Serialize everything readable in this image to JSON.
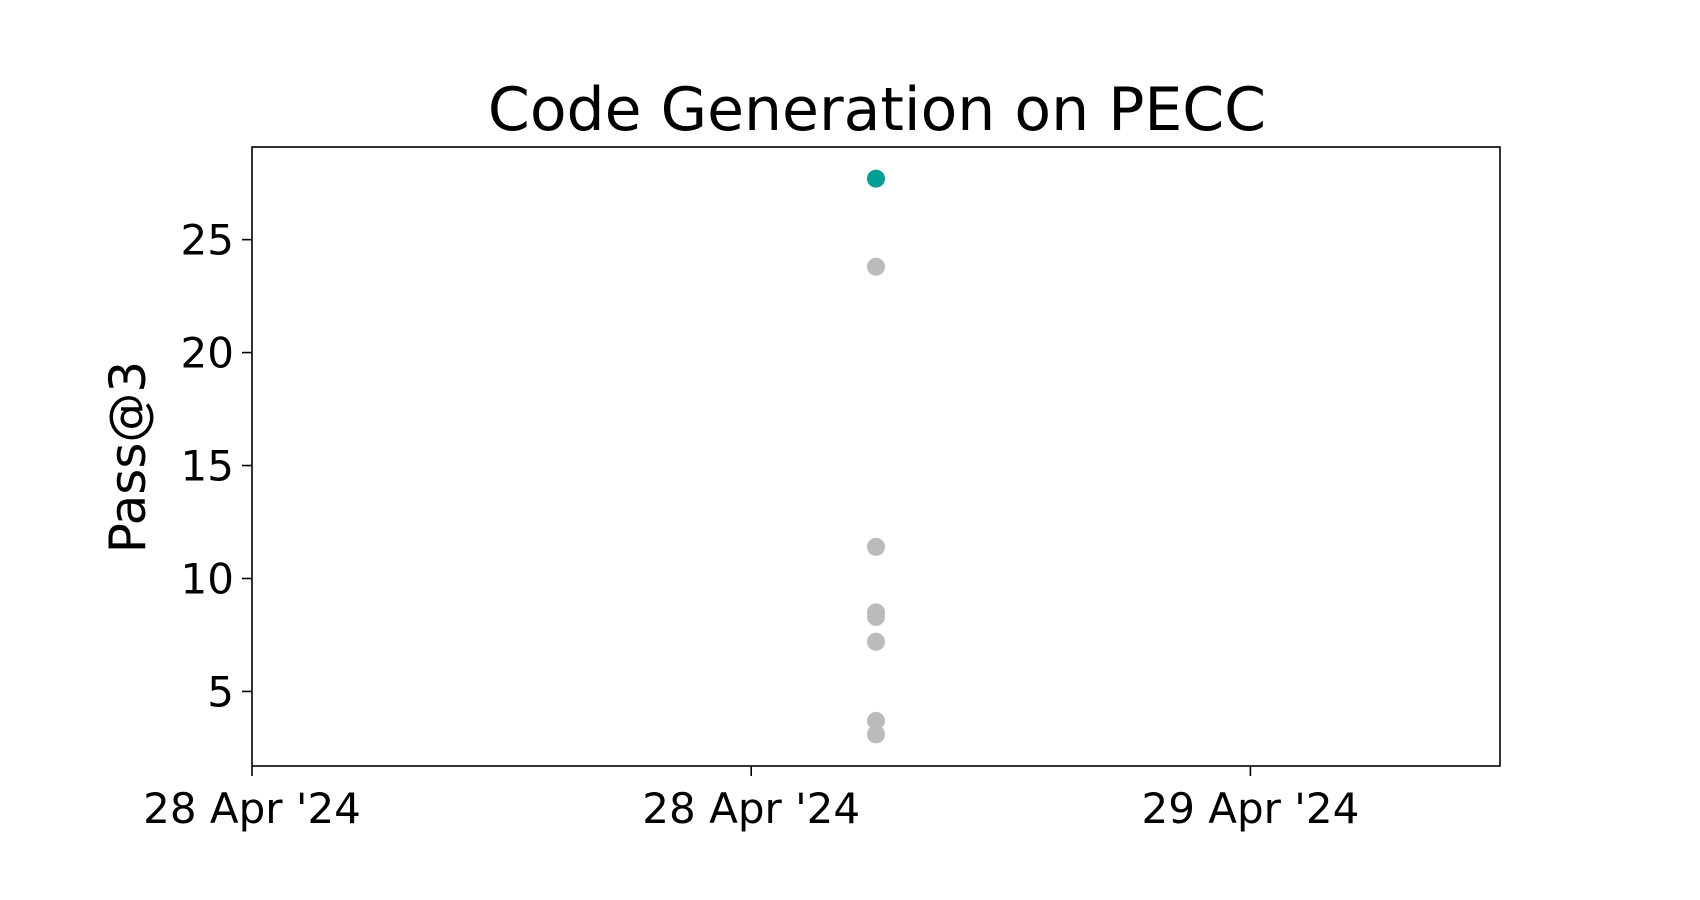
{
  "chart_data": {
    "type": "scatter",
    "title": "Code Generation on PECC",
    "xlabel": "",
    "ylabel": "Pass@3",
    "x_ticks": [
      {
        "label": "28 Apr '24",
        "value": "2024-04-28T00:00"
      },
      {
        "label": "28 Apr '24",
        "value": "2024-04-28T12:00"
      },
      {
        "label": "29 Apr '24",
        "value": "2024-04-29T00:00"
      }
    ],
    "xlim": [
      "2024-04-28T00:00",
      "2024-04-29T06:00"
    ],
    "ylim": [
      1.7,
      29.1
    ],
    "y_ticks": [
      5,
      10,
      15,
      20,
      25
    ],
    "grid": false,
    "series": [
      {
        "color": "#009e94",
        "points": [
          {
            "x": "2024-04-28T15:00",
            "y": 27.7
          }
        ]
      },
      {
        "color": "#bbbbbb",
        "points": [
          {
            "x": "2024-04-28T15:00",
            "y": 23.8
          },
          {
            "x": "2024-04-28T15:00",
            "y": 11.4
          },
          {
            "x": "2024-04-28T15:00",
            "y": 8.5
          },
          {
            "x": "2024-04-28T15:00",
            "y": 8.3
          },
          {
            "x": "2024-04-28T15:00",
            "y": 7.2
          },
          {
            "x": "2024-04-28T15:00",
            "y": 3.7
          },
          {
            "x": "2024-04-28T15:00",
            "y": 3.1
          }
        ]
      }
    ]
  }
}
